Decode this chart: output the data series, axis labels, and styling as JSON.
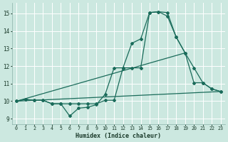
{
  "xlabel": "Humidex (Indice chaleur)",
  "background_color": "#cce8e0",
  "grid_color": "#b0d0c8",
  "line_color": "#1a6b5a",
  "xlim": [
    -0.5,
    23.5
  ],
  "ylim": [
    8.7,
    15.6
  ],
  "xticks": [
    0,
    1,
    2,
    3,
    4,
    5,
    6,
    7,
    8,
    9,
    10,
    11,
    12,
    13,
    14,
    15,
    16,
    17,
    18,
    19,
    20,
    21,
    22,
    23
  ],
  "yticks": [
    9,
    10,
    11,
    12,
    13,
    14,
    15
  ],
  "line1_x": [
    0,
    1,
    2,
    3,
    4,
    5,
    6,
    7,
    8,
    9,
    10,
    11,
    12,
    13,
    14,
    15,
    16,
    17,
    18,
    19,
    20,
    21,
    22,
    23
  ],
  "line1_y": [
    10.0,
    10.1,
    10.05,
    10.05,
    9.85,
    9.85,
    9.15,
    9.6,
    9.65,
    9.8,
    10.4,
    11.9,
    11.9,
    13.3,
    13.55,
    15.05,
    15.1,
    14.85,
    13.65,
    12.75,
    11.9,
    11.05,
    10.7,
    10.55
  ],
  "line2_x": [
    0,
    1,
    2,
    3,
    4,
    5,
    6,
    7,
    8,
    9,
    10,
    11,
    12,
    13,
    14,
    15,
    16,
    17,
    18,
    19,
    20,
    21,
    22,
    23
  ],
  "line2_y": [
    10.0,
    10.1,
    10.05,
    10.05,
    9.85,
    9.85,
    9.85,
    9.85,
    9.85,
    9.85,
    10.05,
    10.05,
    11.9,
    11.9,
    11.9,
    15.05,
    15.1,
    15.05,
    13.65,
    12.75,
    11.05,
    11.05,
    10.7,
    10.55
  ],
  "line3_x": [
    0,
    23
  ],
  "line3_y": [
    10.0,
    10.55
  ],
  "line4_x": [
    0,
    19
  ],
  "line4_y": [
    10.0,
    12.75
  ]
}
